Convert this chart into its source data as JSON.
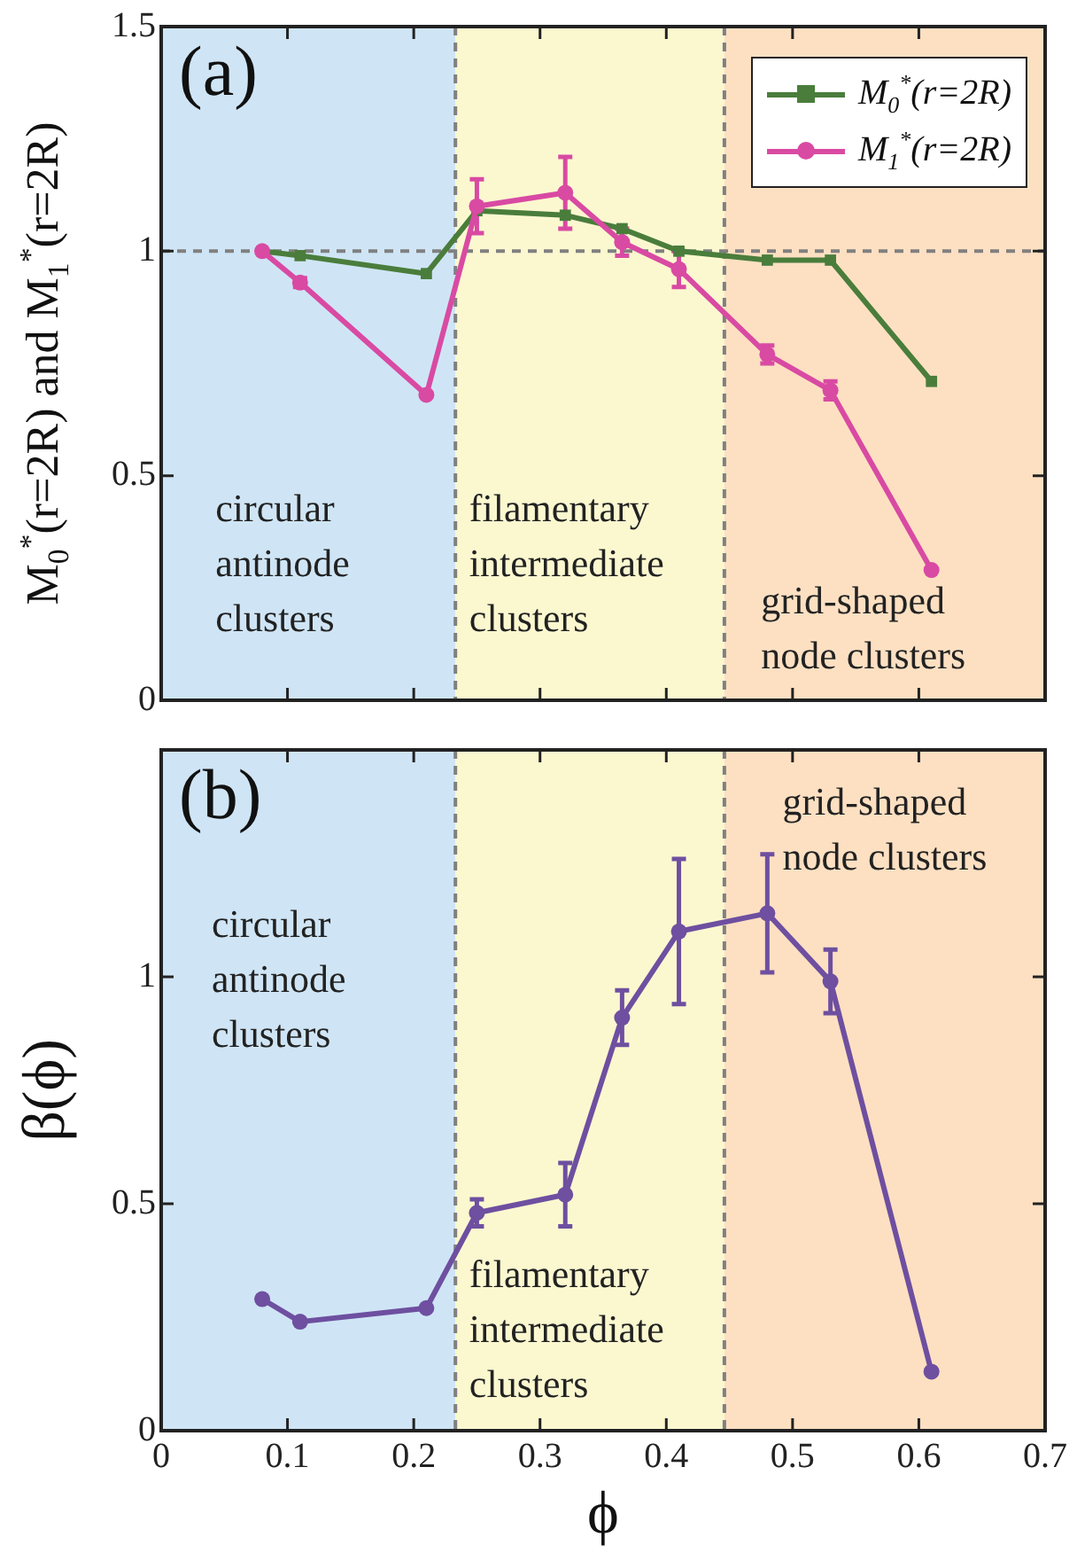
{
  "chart_data": [
    {
      "type": "line",
      "title": "(a)",
      "ylabel": "M$_{0}$$^{*}$(r=2R)  and  M$_{1}$$^{*}$(r=2R)",
      "xlim": [
        0,
        0.7
      ],
      "xticks": [
        0,
        0.1,
        0.2,
        0.3,
        0.4,
        0.5,
        0.6,
        0.7
      ],
      "ylim": [
        0,
        1.5
      ],
      "yticks": [
        0,
        0.5,
        1,
        1.5
      ],
      "tick_labels": "y",
      "legend": "top right",
      "line_style": "solid",
      "series": [
        {
          "name": "M$_{0}$$^{*}$(r=2R)",
          "color": "#4a7d3c",
          "marker": "square",
          "x": [
            0.08,
            0.11,
            0.21,
            0.25,
            0.32,
            0.365,
            0.41,
            0.48,
            0.53,
            0.61
          ],
          "values": [
            1.0,
            0.99,
            0.95,
            1.09,
            1.08,
            1.05,
            1.0,
            0.98,
            0.98,
            0.71
          ]
        },
        {
          "name": "M$_{1}$$^{*}$(r=2R)",
          "color": "#d94aa3",
          "marker": "circle",
          "x": [
            0.08,
            0.11,
            0.21,
            0.25,
            0.32,
            0.365,
            0.41,
            0.48,
            0.53,
            0.61
          ],
          "values": [
            1.0,
            0.93,
            0.68,
            1.1,
            1.13,
            1.02,
            0.96,
            0.77,
            0.69,
            0.29
          ],
          "errors": [
            null,
            0.01,
            null,
            0.06,
            0.08,
            0.03,
            0.04,
            0.02,
            0.02,
            null
          ]
        }
      ],
      "bands": [
        {
          "axis": "x",
          "from": 0,
          "to": 0.233,
          "color": "#cfe5f5"
        },
        {
          "axis": "x",
          "from": 0.233,
          "to": 0.446,
          "color": "#fbf8d0"
        },
        {
          "axis": "x",
          "from": 0.446,
          "to": 0.7,
          "color": "#fde0c2"
        }
      ],
      "ref_lines": [
        {
          "axis": "y",
          "value": 1,
          "color": "#808080",
          "line_style": "dashed"
        },
        {
          "axis": "x",
          "value": 0.233,
          "color": "#808080",
          "line_style": "dashed"
        },
        {
          "axis": "x",
          "value": 0.446,
          "color": "#808080",
          "line_style": "dashed"
        }
      ],
      "annotations": [
        "circular\nantinode\nclusters",
        "filamentary\nintermediate\nclusters",
        "grid-shaped\nnode clusters"
      ]
    },
    {
      "type": "line",
      "title": "(b)",
      "xlabel": "ϕ",
      "ylabel": "β(ϕ)",
      "xlim": [
        0,
        0.7
      ],
      "xticks": [
        0,
        0.1,
        0.2,
        0.3,
        0.4,
        0.5,
        0.6,
        0.7
      ],
      "ylim": [
        0,
        1.5
      ],
      "yticks": [
        0,
        0.5,
        1
      ],
      "line_style": "solid",
      "series": [
        {
          "color": "#6e4fa0",
          "marker": "circle",
          "x": [
            0.08,
            0.11,
            0.21,
            0.25,
            0.32,
            0.365,
            0.41,
            0.48,
            0.53,
            0.61
          ],
          "values": [
            0.29,
            0.24,
            0.27,
            0.48,
            0.52,
            0.91,
            1.1,
            1.14,
            0.99,
            0.13
          ],
          "errors": [
            null,
            null,
            null,
            0.03,
            0.07,
            0.06,
            0.16,
            0.13,
            0.07,
            null
          ]
        }
      ],
      "bands": [
        {
          "axis": "x",
          "from": 0,
          "to": 0.233,
          "color": "#cfe5f5"
        },
        {
          "axis": "x",
          "from": 0.233,
          "to": 0.446,
          "color": "#fbf8d0"
        },
        {
          "axis": "x",
          "from": 0.446,
          "to": 0.7,
          "color": "#fde0c2"
        }
      ],
      "ref_lines": [
        {
          "axis": "x",
          "value": 0.233,
          "color": "#808080",
          "line_style": "dashed"
        },
        {
          "axis": "x",
          "value": 0.446,
          "color": "#808080",
          "line_style": "dashed"
        }
      ],
      "annotations": [
        "circular\nantinode\nclusters",
        "grid-shaped\nnode clusters",
        "filamentary\nintermediate\nclusters"
      ]
    }
  ]
}
